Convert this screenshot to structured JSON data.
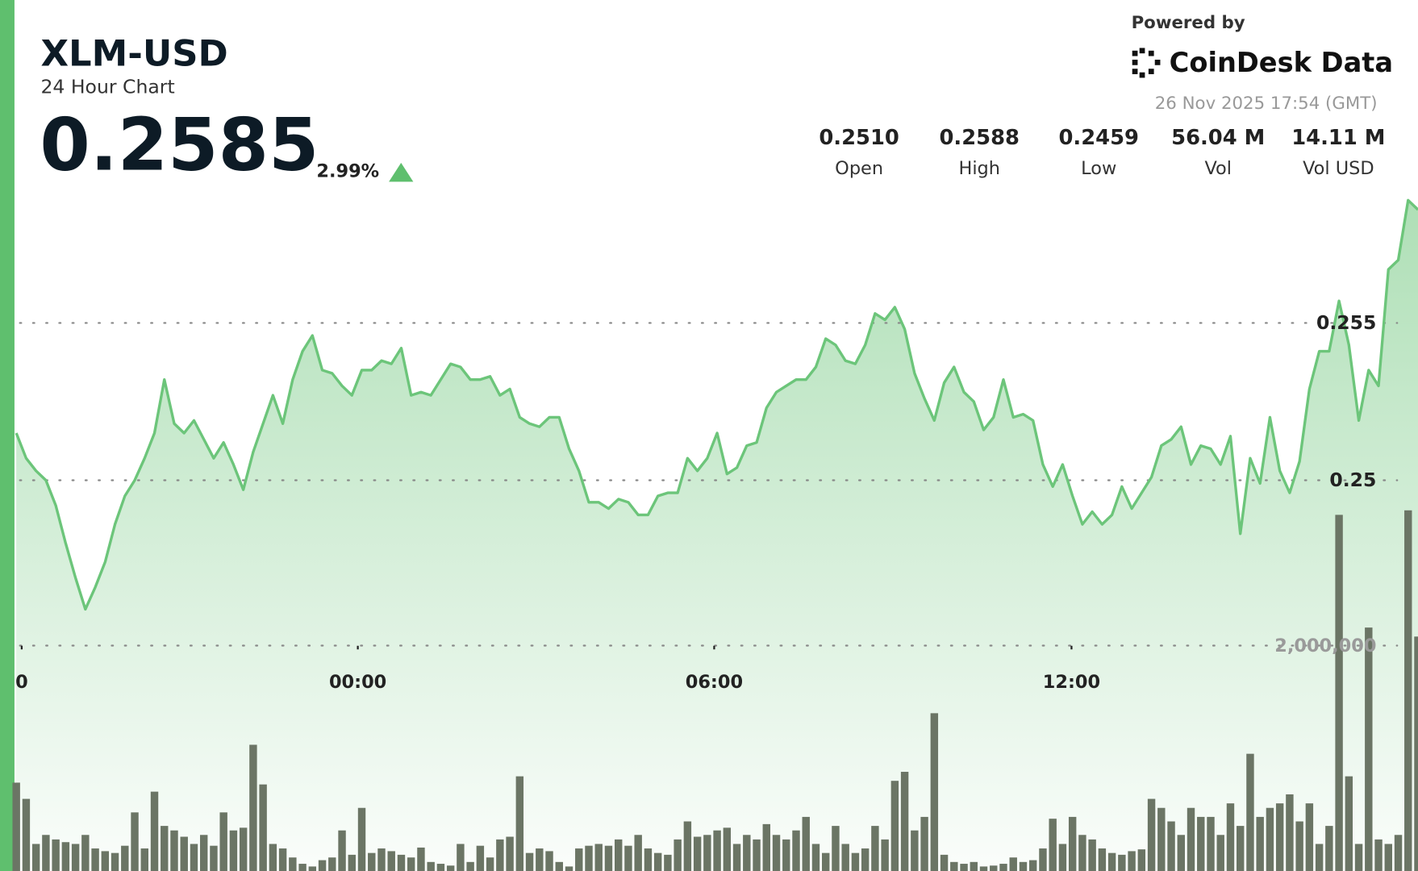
{
  "header": {
    "powered_by": "Powered by",
    "brand": "CoinDesk Data",
    "timestamp": "26 Nov 2025 17:54 (GMT)",
    "price": "0.2585",
    "change": "2.99%",
    "stats": [
      {
        "value": "0.2510",
        "label": "Open"
      },
      {
        "value": "0.2588",
        "label": "High"
      },
      {
        "value": "0.2459",
        "label": "Low"
      },
      {
        "value": "56.04 M",
        "label": "Vol"
      },
      {
        "value": "14.11 M",
        "label": "Vol USD"
      }
    ]
  },
  "chart_data": {
    "type": "line",
    "title": "XLM-USD",
    "subtitle": "24 Hour Chart",
    "xlim": [
      0,
      142
    ],
    "xticks": [
      {
        "value": 0.55,
        "label": "0"
      },
      {
        "value": 34.6,
        "label": "00:00"
      },
      {
        "value": 70.7,
        "label": "06:00"
      },
      {
        "value": 106.9,
        "label": "12:00"
      }
    ],
    "ylim": [
      0.2454,
      0.2594
    ],
    "yticks": [
      0.25,
      0.255
    ],
    "y2lim": [
      0,
      3868000
    ],
    "y2ticks": [
      {
        "value": 2000000,
        "label": "2,000,000"
      }
    ],
    "grid": true,
    "series": [
      {
        "type": "line",
        "color": "#6cc57a",
        "values": [
          0.2515,
          0.2507,
          0.2503,
          0.25,
          0.2492,
          0.248,
          0.2469,
          0.2459,
          0.2466,
          0.2474,
          0.2486,
          0.2495,
          0.25,
          0.2507,
          0.2515,
          0.2532,
          0.2518,
          0.2515,
          0.2519,
          0.2513,
          0.2507,
          0.2512,
          0.2505,
          0.2497,
          0.2509,
          0.2518,
          0.2527,
          0.2518,
          0.2532,
          0.2541,
          0.2546,
          0.2535,
          0.2534,
          0.253,
          0.2527,
          0.2535,
          0.2535,
          0.2538,
          0.2537,
          0.2542,
          0.2527,
          0.2528,
          0.2527,
          0.2532,
          0.2537,
          0.2536,
          0.2532,
          0.2532,
          0.2533,
          0.2527,
          0.2529,
          0.252,
          0.2518,
          0.2517,
          0.252,
          0.252,
          0.251,
          0.2503,
          0.2493,
          0.2493,
          0.2491,
          0.2494,
          0.2493,
          0.2489,
          0.2489,
          0.2495,
          0.2496,
          0.2496,
          0.2507,
          0.2503,
          0.2507,
          0.2515,
          0.2502,
          0.2504,
          0.2511,
          0.2512,
          0.2523,
          0.2528,
          0.253,
          0.2532,
          0.2532,
          0.2536,
          0.2545,
          0.2543,
          0.2538,
          0.2537,
          0.2543,
          0.2553,
          0.2551,
          0.2555,
          0.2548,
          0.2534,
          0.2526,
          0.2519,
          0.2531,
          0.2536,
          0.2528,
          0.2525,
          0.2516,
          0.252,
          0.2532,
          0.252,
          0.2521,
          0.2519,
          0.2505,
          0.2498,
          0.2505,
          0.2495,
          0.2486,
          0.249,
          0.2486,
          0.2489,
          0.2498,
          0.2491,
          0.2496,
          0.2501,
          0.2511,
          0.2513,
          0.2517,
          0.2505,
          0.2511,
          0.251,
          0.2505,
          0.2514,
          0.2483,
          0.2507,
          0.2499,
          0.252,
          0.2503,
          0.2496,
          0.2506,
          0.2529,
          0.2541,
          0.2541,
          0.2557,
          0.2543,
          0.2519,
          0.2535,
          0.253,
          0.2567,
          0.257,
          0.2589,
          0.2586
        ]
      },
      {
        "type": "bar",
        "axis": "y2",
        "color": "#6b7565",
        "values": [
          784000,
          640000,
          240000,
          320000,
          280000,
          256000,
          240000,
          320000,
          200000,
          176000,
          160000,
          224000,
          520000,
          200000,
          704000,
          400000,
          360000,
          304000,
          240000,
          320000,
          224000,
          520000,
          360000,
          384000,
          1120000,
          768000,
          240000,
          200000,
          120000,
          64000,
          40000,
          96000,
          120000,
          360000,
          144000,
          560000,
          160000,
          200000,
          176000,
          144000,
          120000,
          208000,
          80000,
          64000,
          48000,
          240000,
          80000,
          224000,
          120000,
          280000,
          304000,
          840000,
          160000,
          200000,
          176000,
          80000,
          40000,
          200000,
          224000,
          240000,
          224000,
          280000,
          224000,
          320000,
          200000,
          160000,
          144000,
          280000,
          440000,
          304000,
          320000,
          360000,
          384000,
          240000,
          320000,
          280000,
          416000,
          320000,
          280000,
          360000,
          480000,
          240000,
          160000,
          400000,
          240000,
          160000,
          200000,
          400000,
          280000,
          800000,
          880000,
          360000,
          480000,
          1400000,
          144000,
          80000,
          64000,
          80000,
          40000,
          48000,
          64000,
          120000,
          80000,
          96000,
          200000,
          464000,
          240000,
          480000,
          320000,
          280000,
          200000,
          160000,
          144000,
          176000,
          192000,
          640000,
          560000,
          440000,
          320000,
          560000,
          480000,
          480000,
          320000,
          600000,
          400000,
          1040000,
          480000,
          560000,
          600000,
          680000,
          440000,
          600000,
          240000,
          400000,
          3160000,
          840000,
          240000,
          2160000,
          280000,
          240000,
          320000,
          3200000,
          2080000
        ]
      }
    ]
  }
}
